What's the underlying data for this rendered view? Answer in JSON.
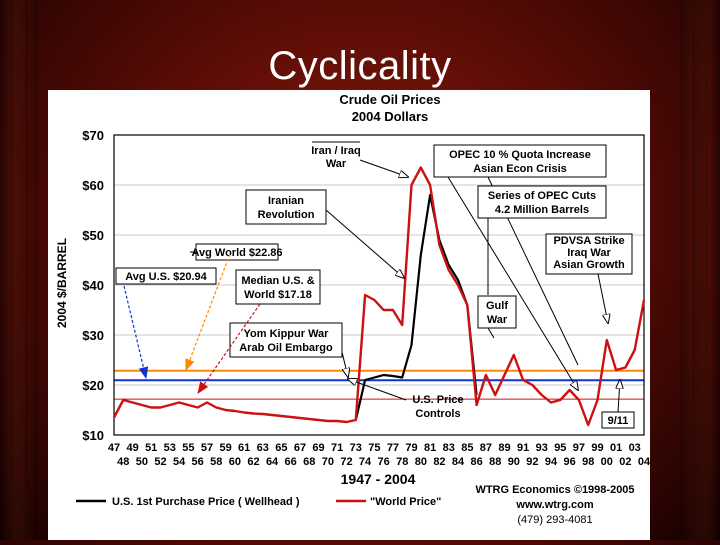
{
  "slide": {
    "title": "Cyclicality"
  },
  "colors": {
    "us_series": "#000000",
    "world_series": "#cc1111",
    "avg_world": "#ff8800",
    "avg_us": "#1133cc",
    "median": "#cc1111",
    "arrow_blue": "#1133cc",
    "arrow_orange": "#ff8800",
    "arrow_red": "#cc1111"
  },
  "chart_data": {
    "type": "line",
    "title": "Crude Oil Prices",
    "subtitle": "2004 Dollars",
    "ylabel": "2004 $/BARREL",
    "xlabel": "1947 - 2004",
    "ylim": [
      10,
      70
    ],
    "xlim": [
      1947,
      2004
    ],
    "yticks": [
      "$10",
      "$20",
      "$30",
      "$40",
      "$50",
      "$60",
      "$70"
    ],
    "xticks_top": [
      "47",
      "49",
      "51",
      "53",
      "55",
      "57",
      "59",
      "61",
      "63",
      "65",
      "67",
      "69",
      "71",
      "73",
      "75",
      "77",
      "79",
      "81",
      "83",
      "85",
      "87",
      "89",
      "91",
      "93",
      "95",
      "97",
      "99",
      "01",
      "03"
    ],
    "xticks_bottom": [
      "48",
      "50",
      "52",
      "54",
      "56",
      "58",
      "60",
      "62",
      "64",
      "66",
      "68",
      "70",
      "72",
      "74",
      "76",
      "78",
      "80",
      "82",
      "84",
      "86",
      "88",
      "90",
      "92",
      "94",
      "96",
      "98",
      "00",
      "02",
      "04"
    ],
    "grid": true,
    "reference_lines": [
      {
        "name": "Avg World $22.86",
        "value": 22.86
      },
      {
        "name": "Avg U.S. $20.94",
        "value": 20.94
      },
      {
        "name": "Median U.S. & World $17.18",
        "value": 17.18
      }
    ],
    "series": [
      {
        "name": "U.S. 1st Purchase Price ( Wellhead )",
        "x": [
          1973,
          1974,
          1975,
          1976,
          1977,
          1978,
          1979,
          1980,
          1981,
          1982,
          1983,
          1984,
          1985,
          1986
        ],
        "y": [
          13,
          21,
          21.5,
          22,
          21.8,
          21.5,
          28,
          46,
          58,
          49,
          44,
          41,
          36,
          18
        ]
      },
      {
        "name": "\"World Price\"",
        "x": [
          1947,
          1948,
          1949,
          1950,
          1951,
          1952,
          1953,
          1954,
          1955,
          1956,
          1957,
          1958,
          1959,
          1960,
          1961,
          1962,
          1963,
          1964,
          1965,
          1966,
          1967,
          1968,
          1969,
          1970,
          1971,
          1972,
          1973,
          1974,
          1975,
          1976,
          1977,
          1978,
          1979,
          1980,
          1981,
          1982,
          1983,
          1984,
          1985,
          1986,
          1987,
          1988,
          1989,
          1990,
          1991,
          1992,
          1993,
          1994,
          1995,
          1996,
          1997,
          1998,
          1999,
          2000,
          2001,
          2002,
          2003,
          2004
        ],
        "y": [
          13.5,
          17,
          16.5,
          16,
          15.5,
          15.5,
          16,
          16.5,
          16,
          15.5,
          16.5,
          15.5,
          15,
          14.8,
          14.5,
          14.3,
          14.2,
          14,
          13.8,
          13.6,
          13.4,
          13.2,
          13,
          12.8,
          12.8,
          12.6,
          13,
          38,
          37,
          35,
          35,
          32,
          60,
          63.5,
          60,
          48,
          43,
          40,
          36,
          16,
          22,
          18,
          22,
          26,
          21,
          20,
          18,
          16.5,
          17,
          19,
          17,
          12,
          17,
          29,
          23,
          23.5,
          27,
          37
        ]
      }
    ],
    "annotations": [
      "Iran / Iraq War",
      "OPEC 10 % Quota Increase Asian Econ Crisis",
      "Iranian Revolution",
      "Series of OPEC Cuts 4.2 Million Barrels",
      "Avg World $22.86",
      "PDVSA Strike Iraq War Asian Growth",
      "Avg U.S. $20.94",
      "Median U.S. & World $17.18",
      "Gulf War",
      "Yom Kippur War Arab Oil Embargo",
      "U.S. Price Controls",
      "9/11"
    ],
    "footer": {
      "credit": "WTRG Economics ©1998-2005",
      "website": "www.wtrg.com",
      "phone": "(479) 293-4081"
    }
  }
}
